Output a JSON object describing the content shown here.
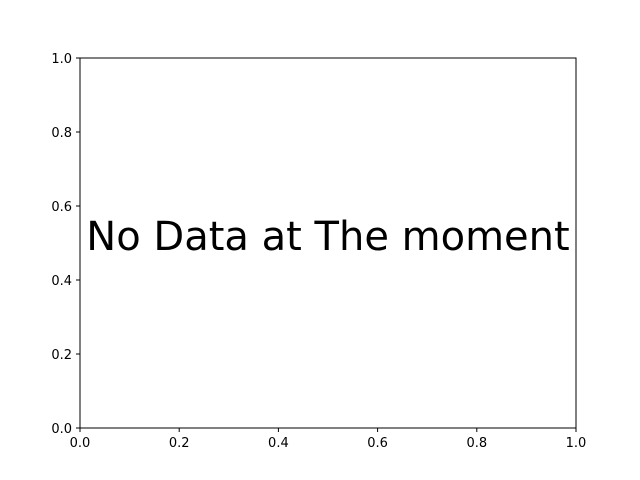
{
  "chart_data": {
    "type": "scatter",
    "title": "",
    "xlabel": "",
    "ylabel": "",
    "xlim": [
      0,
      1
    ],
    "ylim": [
      0,
      1
    ],
    "x_ticks": [
      "0.0",
      "0.2",
      "0.4",
      "0.6",
      "0.8",
      "1.0"
    ],
    "y_ticks": [
      "0.0",
      "0.2",
      "0.4",
      "0.6",
      "0.8",
      "1.0"
    ],
    "series": [],
    "grid": false,
    "annotation": {
      "text": "No Data at The moment",
      "x": 0.5,
      "y": 0.5
    }
  }
}
